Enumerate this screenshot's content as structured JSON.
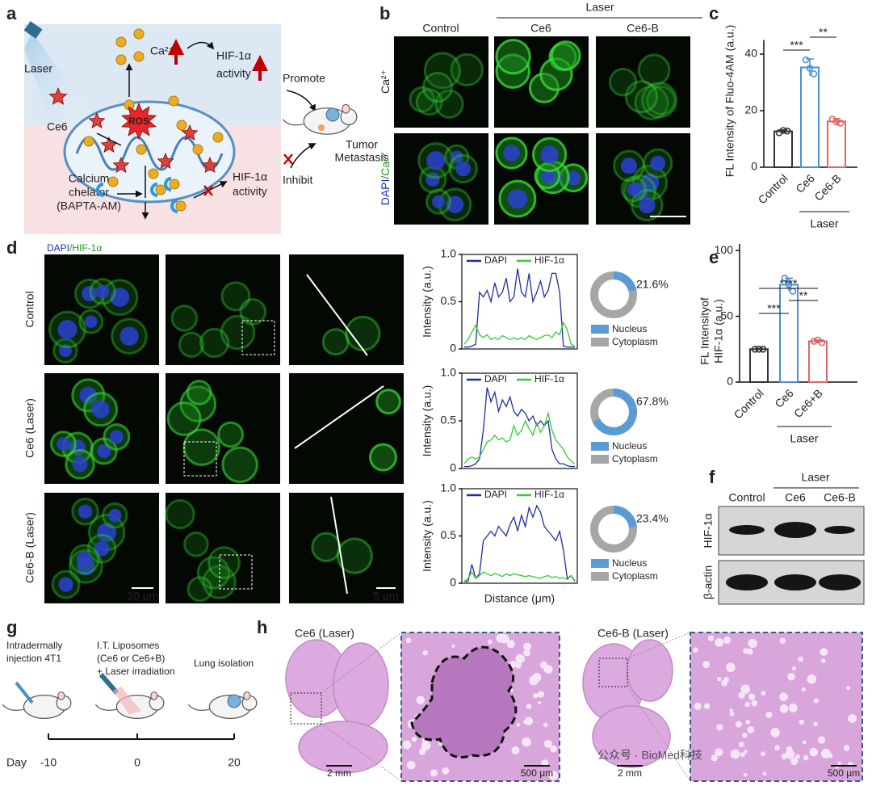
{
  "chart_data": [
    {
      "type": "bar",
      "panel_label": "c",
      "y_label": "FL Intensity of Fluo-4AM (a.u.)",
      "categories": [
        "Control",
        "Ce6",
        "Ce6-B"
      ],
      "colors": [
        "#333333",
        "#4a90d9",
        "#e06666"
      ],
      "values": [
        12.7,
        35.3,
        16.2
      ],
      "errors": [
        0.5,
        3,
        1
      ],
      "points": [
        [
          12.2,
          13,
          12.8
        ],
        [
          38,
          35,
          33
        ],
        [
          17,
          16,
          15.6
        ]
      ],
      "ylim": [
        0,
        45
      ],
      "yticks": [
        0,
        20,
        40
      ],
      "group_label": "Laser",
      "significance": [
        "***",
        "**"
      ]
    },
    {
      "type": "line",
      "y_label": "Intensity (a.u.)",
      "ylim": [
        0,
        1
      ],
      "yticks": [
        0,
        0.5,
        {
          "value": 1,
          "label": "1.0"
        }
      ],
      "series": [
        {
          "name": "DAPI",
          "color": "#1f2f9e",
          "values": [
            0.02,
            0.02,
            0.03,
            0.05,
            0.6,
            0.55,
            0.62,
            0.5,
            0.7,
            0.55,
            0.6,
            0.75,
            0.5,
            0.55,
            0.85,
            0.6,
            0.55,
            0.8,
            0.5,
            0.6,
            0.72,
            0.55,
            0.62,
            0.8,
            0.8,
            0.6,
            0.03,
            0.02,
            0.02,
            0.02
          ]
        },
        {
          "name": "HIF-1α",
          "color": "#33cc33",
          "values": [
            0.05,
            0.1,
            0.18,
            0.25,
            0.15,
            0.12,
            0.15,
            0.1,
            0.12,
            0.1,
            0.14,
            0.12,
            0.1,
            0.12,
            0.1,
            0.12,
            0.1,
            0.14,
            0.12,
            0.1,
            0.12,
            0.14,
            0.15,
            0.12,
            0.18,
            0.15,
            0.28,
            0.2,
            0.05,
            0.03
          ]
        }
      ]
    },
    {
      "type": "line",
      "y_label": "Intensity (a.u.)",
      "ylim": [
        0,
        1
      ],
      "yticks": [
        0,
        0.5,
        {
          "value": 1,
          "label": "1.0"
        }
      ],
      "series": [
        {
          "name": "DAPI",
          "color": "#1f2f9e",
          "values": [
            0.02,
            0.02,
            0.03,
            0.05,
            0.1,
            0.4,
            0.85,
            0.7,
            0.8,
            0.6,
            0.72,
            0.65,
            0.75,
            0.6,
            0.55,
            0.62,
            0.58,
            0.5,
            0.55,
            0.45,
            0.5,
            0.45,
            0.5,
            0.2,
            0.1,
            0.05,
            0.05,
            0.03,
            0.02,
            0.02
          ]
        },
        {
          "name": "HIF-1α",
          "color": "#33cc33",
          "values": [
            0.05,
            0.1,
            0.12,
            0.1,
            0.12,
            0.2,
            0.28,
            0.3,
            0.35,
            0.3,
            0.32,
            0.28,
            0.3,
            0.45,
            0.35,
            0.4,
            0.5,
            0.42,
            0.35,
            0.48,
            0.38,
            0.45,
            0.58,
            0.4,
            0.3,
            0.25,
            0.2,
            0.12,
            0.08,
            0.05
          ]
        }
      ]
    },
    {
      "type": "line",
      "y_label": "Intensity (a.u.)",
      "x_label": "Distance (μm)",
      "ylim": [
        0,
        1
      ],
      "yticks": [
        0,
        0.5,
        {
          "value": 1,
          "label": "1.0"
        }
      ],
      "series": [
        {
          "name": "DAPI",
          "color": "#1f2f9e",
          "values": [
            0.02,
            0.02,
            0.2,
            0.05,
            0.1,
            0.45,
            0.5,
            0.55,
            0.5,
            0.6,
            0.55,
            0.5,
            0.62,
            0.7,
            0.55,
            0.72,
            0.6,
            0.8,
            0.7,
            0.82,
            0.75,
            0.6,
            0.55,
            0.5,
            0.45,
            0.55,
            0.35,
            0.05,
            0.08,
            0.02
          ]
        },
        {
          "name": "HIF-1α",
          "color": "#33cc33",
          "values": [
            0.02,
            0.05,
            0.12,
            0.05,
            0.08,
            0.12,
            0.1,
            0.08,
            0.1,
            0.09,
            0.07,
            0.1,
            0.08,
            0.1,
            0.09,
            0.08,
            0.07,
            0.08,
            0.07,
            0.06,
            0.05,
            0.07,
            0.08,
            0.06,
            0.07,
            0.05,
            0.06,
            0.04,
            0.08,
            0.03
          ]
        }
      ]
    },
    {
      "type": "donut",
      "values": [
        21.6
      ],
      "value_labels": [
        "21.6%"
      ],
      "legend": [
        "Nucleus",
        "Cytoplasm"
      ],
      "colors": [
        "#5b9bd5",
        "#a6a6a6"
      ]
    },
    {
      "type": "donut",
      "values": [
        67.8
      ],
      "value_labels": [
        "67.8%"
      ],
      "legend": [
        "Nucleus",
        "Cytoplasm"
      ],
      "colors": [
        "#5b9bd5",
        "#a6a6a6"
      ]
    },
    {
      "type": "donut",
      "values": [
        23.4
      ],
      "value_labels": [
        "23.4%"
      ],
      "legend": [
        "Nucleus",
        "Cytoplasm"
      ],
      "colors": [
        "#5b9bd5",
        "#a6a6a6"
      ]
    },
    {
      "type": "bar",
      "panel_label": "e",
      "y_label": [
        "FL Intensityof",
        "HIF-1α  (a.u.)"
      ],
      "categories": [
        "Control",
        "Ce6",
        "Ce6+B"
      ],
      "colors": [
        "#333333",
        "#4a90d9",
        "#e06666"
      ],
      "values": [
        25,
        74,
        31
      ],
      "errors": [
        0.5,
        5,
        1
      ],
      "points": [
        [
          25,
          25,
          25
        ],
        [
          79,
          74,
          69
        ],
        [
          31,
          32,
          30
        ]
      ],
      "ylim": [
        0,
        105
      ],
      "yticks": [
        0,
        50,
        100
      ],
      "group_label": "Laser",
      "significance": [
        "****",
        "**",
        "***"
      ]
    }
  ],
  "panels": {
    "a": {
      "label": "a",
      "laser": "Laser",
      "ce6": "Ce6",
      "calcium": "Ca²⁺",
      "promote_activity": [
        "HIF-1α",
        "activity"
      ],
      "promote": "Promote",
      "ros": "ROS",
      "tumor_metastasis": [
        "Tumor",
        "Metastasis"
      ],
      "calcium_chelator": [
        "Calcium",
        "chelator",
        "(BAPTA-AM)"
      ],
      "inhibit_activity": [
        "HIF-1α",
        "activity"
      ],
      "inhibit": "Inhibit"
    },
    "b": {
      "label": "b",
      "group": "Laser",
      "columns": [
        "Control",
        "Ce6",
        "Ce6-B"
      ],
      "rows": [
        [
          "Ca²⁺"
        ],
        [
          "DAPI",
          "/Ca²⁺"
        ]
      ]
    },
    "d": {
      "label": "d",
      "legend": [
        "DAPI",
        "/HIF-1α"
      ],
      "rows": [
        "Control",
        "Ce6 (Laser)",
        "Ce6-B (Laser)"
      ],
      "scale_bars": [
        "20 μm",
        "5 μm"
      ]
    },
    "f": {
      "label": "f",
      "group": "Laser",
      "columns": [
        "Control",
        "Ce6",
        "Ce6-B"
      ],
      "rows": [
        "HIF-1α",
        "β-actin"
      ]
    },
    "g": {
      "label": "g",
      "steps": [
        [
          "Intradermally",
          "injection 4T1"
        ],
        [
          "I.T. Liposomes",
          "(Ce6 or Ce6+B)",
          "+ Laser irradiation"
        ],
        [
          "Lung isolation"
        ]
      ],
      "day_label": "Day",
      "days": [
        -10,
        0,
        20
      ]
    },
    "h": {
      "label": "h",
      "groups": [
        "Ce6 (Laser)",
        "Ce6-B (Laser)"
      ],
      "scale_bars": [
        "2 mm",
        "500 μm",
        "2 mm",
        "500 μm"
      ]
    },
    "watermark": "公众号 · BioMed科技"
  }
}
